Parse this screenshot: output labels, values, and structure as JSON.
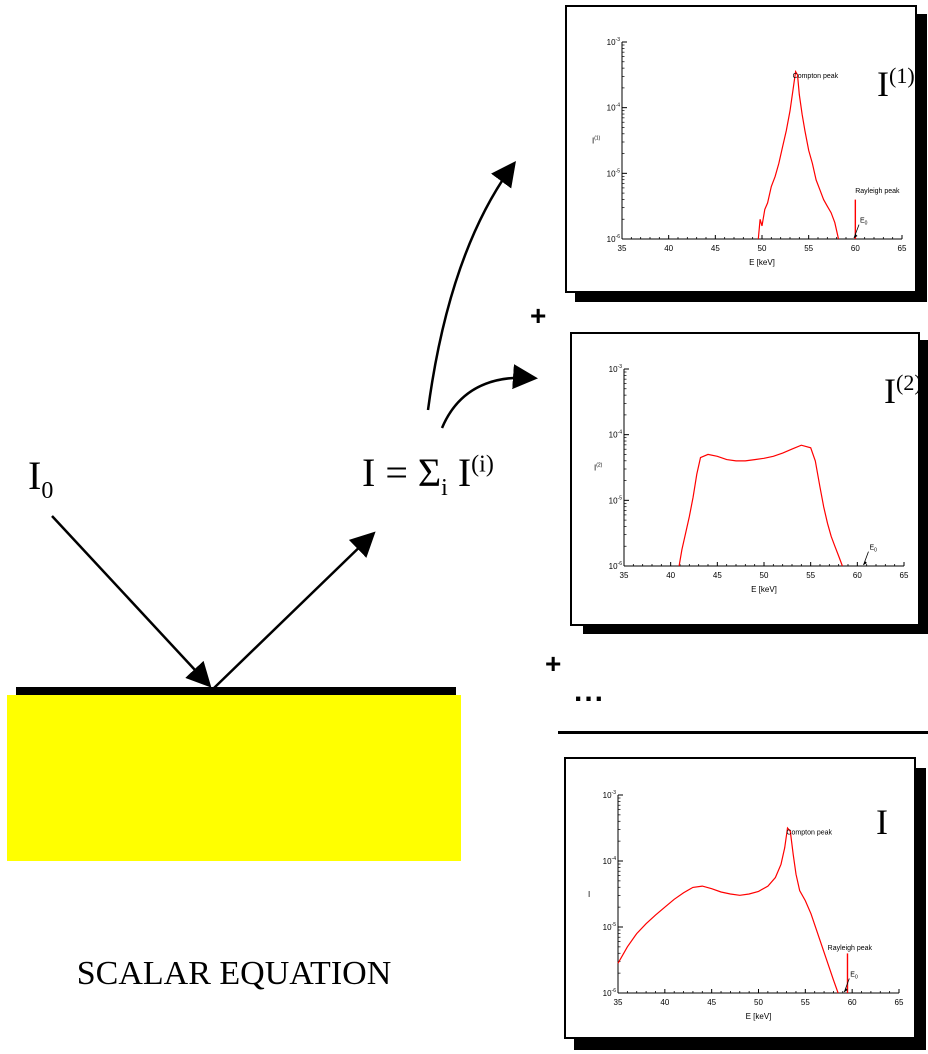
{
  "left": {
    "i0_base": "I",
    "i0_sub": "0",
    "sum_lhs": "I = Σ",
    "sum_sub": "i",
    "sum_I": " I",
    "sum_sup": "(i)",
    "caption": "SCALAR EQUATION",
    "slab_color": "#ffff00"
  },
  "operators": {
    "plus1": "+",
    "plus2": "+",
    "ellipsis": "..."
  },
  "colors": {
    "curve": "#ff0000",
    "frame": "#000000"
  },
  "chart_data": [
    {
      "type": "line",
      "plot_label_base": "I",
      "plot_label_sup": "(1)",
      "xlabel": "E [keV]",
      "ylabel_base": "I",
      "ylabel_sup": "(1)",
      "xlim": [
        35,
        65
      ],
      "xticks": [
        "35",
        "40",
        "45",
        "50",
        "55",
        "60",
        "65"
      ],
      "yscale": "log",
      "ylim_exp": [
        -6,
        -3
      ],
      "yticks": [
        {
          "base": "10",
          "exp": "-6"
        },
        {
          "base": "10",
          "exp": "-5"
        },
        {
          "base": "10",
          "exp": "-4"
        },
        {
          "base": "10",
          "exp": "-3"
        }
      ],
      "annotations": [
        {
          "text": "Compton peak",
          "x": 53.5,
          "y_exp": -3.55
        },
        {
          "text": "Rayleigh peak",
          "x": 60.2,
          "y_exp": -5.3
        },
        {
          "text_base": "E",
          "text_sub": "0",
          "x": 60.5,
          "y_exp": -5.75
        }
      ],
      "vlines": [
        {
          "x": 60.0,
          "y_exp_top": -5.4
        }
      ],
      "series": [
        {
          "x": [
            49.6,
            49.8,
            50.0,
            50.3,
            50.6,
            51.0,
            51.4,
            51.8,
            52.2,
            52.6,
            53.0,
            53.3,
            53.6,
            53.8,
            54.0,
            54.3,
            54.6,
            55.0,
            55.4,
            55.8,
            56.2,
            56.6,
            57.0,
            57.4,
            57.8,
            58.2
          ],
          "y_exp": [
            -6.0,
            -5.7,
            -5.8,
            -5.55,
            -5.45,
            -5.2,
            -5.05,
            -4.85,
            -4.6,
            -4.35,
            -4.05,
            -3.75,
            -3.45,
            -3.5,
            -3.8,
            -4.1,
            -4.35,
            -4.65,
            -4.85,
            -5.1,
            -5.25,
            -5.4,
            -5.5,
            -5.6,
            -5.75,
            -6.0
          ]
        }
      ]
    },
    {
      "type": "line",
      "plot_label_base": "I",
      "plot_label_sup": "(2)",
      "xlabel": "E [keV]",
      "ylabel_base": "I",
      "ylabel_sup": "(2)",
      "xlim": [
        35,
        65
      ],
      "xticks": [
        "35",
        "40",
        "45",
        "50",
        "55",
        "60",
        "65"
      ],
      "yscale": "log",
      "ylim_exp": [
        -6,
        -3
      ],
      "yticks": [
        {
          "base": "10",
          "exp": "-6"
        },
        {
          "base": "10",
          "exp": "-5"
        },
        {
          "base": "10",
          "exp": "-4"
        },
        {
          "base": "10",
          "exp": "-3"
        }
      ],
      "annotations": [
        {
          "text_base": "E",
          "text_sub": "0",
          "x": 61.3,
          "y_exp": -5.75
        }
      ],
      "vlines": [],
      "series": [
        {
          "x": [
            40.9,
            41.2,
            41.6,
            42.0,
            42.4,
            42.8,
            43.2,
            44.0,
            45.0,
            46.0,
            47.0,
            48.0,
            49.0,
            50.0,
            51.0,
            52.0,
            53.0,
            54.0,
            55.0,
            55.5,
            56.0,
            56.4,
            56.8,
            57.2,
            57.6,
            58.0,
            58.4
          ],
          "y_exp": [
            -6.0,
            -5.75,
            -5.5,
            -5.25,
            -4.95,
            -4.6,
            -4.35,
            -4.3,
            -4.33,
            -4.38,
            -4.4,
            -4.4,
            -4.38,
            -4.36,
            -4.33,
            -4.28,
            -4.22,
            -4.16,
            -4.2,
            -4.4,
            -4.8,
            -5.1,
            -5.35,
            -5.55,
            -5.7,
            -5.85,
            -6.0
          ]
        }
      ]
    },
    {
      "type": "line",
      "plot_label_base": "I",
      "plot_label_sup": "",
      "xlabel": "E [keV]",
      "ylabel_base": "I",
      "ylabel_sup": "",
      "xlim": [
        35,
        65
      ],
      "xticks": [
        "35",
        "40",
        "45",
        "50",
        "55",
        "60",
        "65"
      ],
      "yscale": "log",
      "ylim_exp": [
        -6,
        -3
      ],
      "yticks": [
        {
          "base": "10",
          "exp": "-6"
        },
        {
          "base": "10",
          "exp": "-5"
        },
        {
          "base": "10",
          "exp": "-4"
        },
        {
          "base": "10",
          "exp": "-3"
        }
      ],
      "annotations": [
        {
          "text": "Compton peak",
          "x": 53.2,
          "y_exp": -3.6
        },
        {
          "text": "Rayleigh peak",
          "x": 57.6,
          "y_exp": -5.35
        },
        {
          "text_base": "E",
          "text_sub": "0",
          "x": 59.8,
          "y_exp": -5.75
        }
      ],
      "vlines": [
        {
          "x": 59.5,
          "y_exp_top": -5.4
        }
      ],
      "series": [
        {
          "x": [
            35.0,
            36.0,
            37.0,
            38.0,
            39.0,
            40.0,
            41.0,
            42.0,
            43.0,
            44.0,
            45.0,
            46.0,
            47.0,
            48.0,
            49.0,
            50.0,
            51.0,
            51.8,
            52.4,
            52.8,
            53.1,
            53.4,
            53.7,
            54.0,
            54.4,
            55.0,
            55.6,
            56.2,
            56.8,
            57.4,
            58.0,
            58.5
          ],
          "y_exp": [
            -5.55,
            -5.3,
            -5.1,
            -4.95,
            -4.82,
            -4.7,
            -4.58,
            -4.48,
            -4.4,
            -4.38,
            -4.42,
            -4.47,
            -4.5,
            -4.52,
            -4.5,
            -4.46,
            -4.38,
            -4.25,
            -4.05,
            -3.8,
            -3.5,
            -3.55,
            -3.9,
            -4.2,
            -4.45,
            -4.6,
            -4.8,
            -5.05,
            -5.3,
            -5.55,
            -5.8,
            -6.0
          ]
        }
      ]
    }
  ]
}
